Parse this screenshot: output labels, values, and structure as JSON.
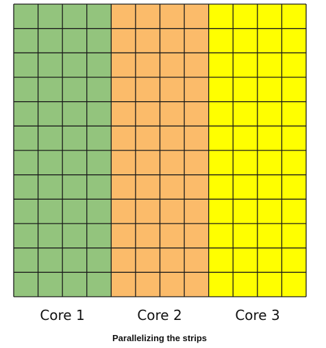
{
  "diagram": {
    "rows": 12,
    "columns_per_core": 4,
    "gridline_color": "#1a1a1a",
    "cores": [
      {
        "label": "Core 1",
        "color": "#93c47d"
      },
      {
        "label": "Core 2",
        "color": "#fbbb6a"
      },
      {
        "label": "Core 3",
        "color": "#ffff00"
      }
    ],
    "caption": "Parallelizing the strips"
  }
}
